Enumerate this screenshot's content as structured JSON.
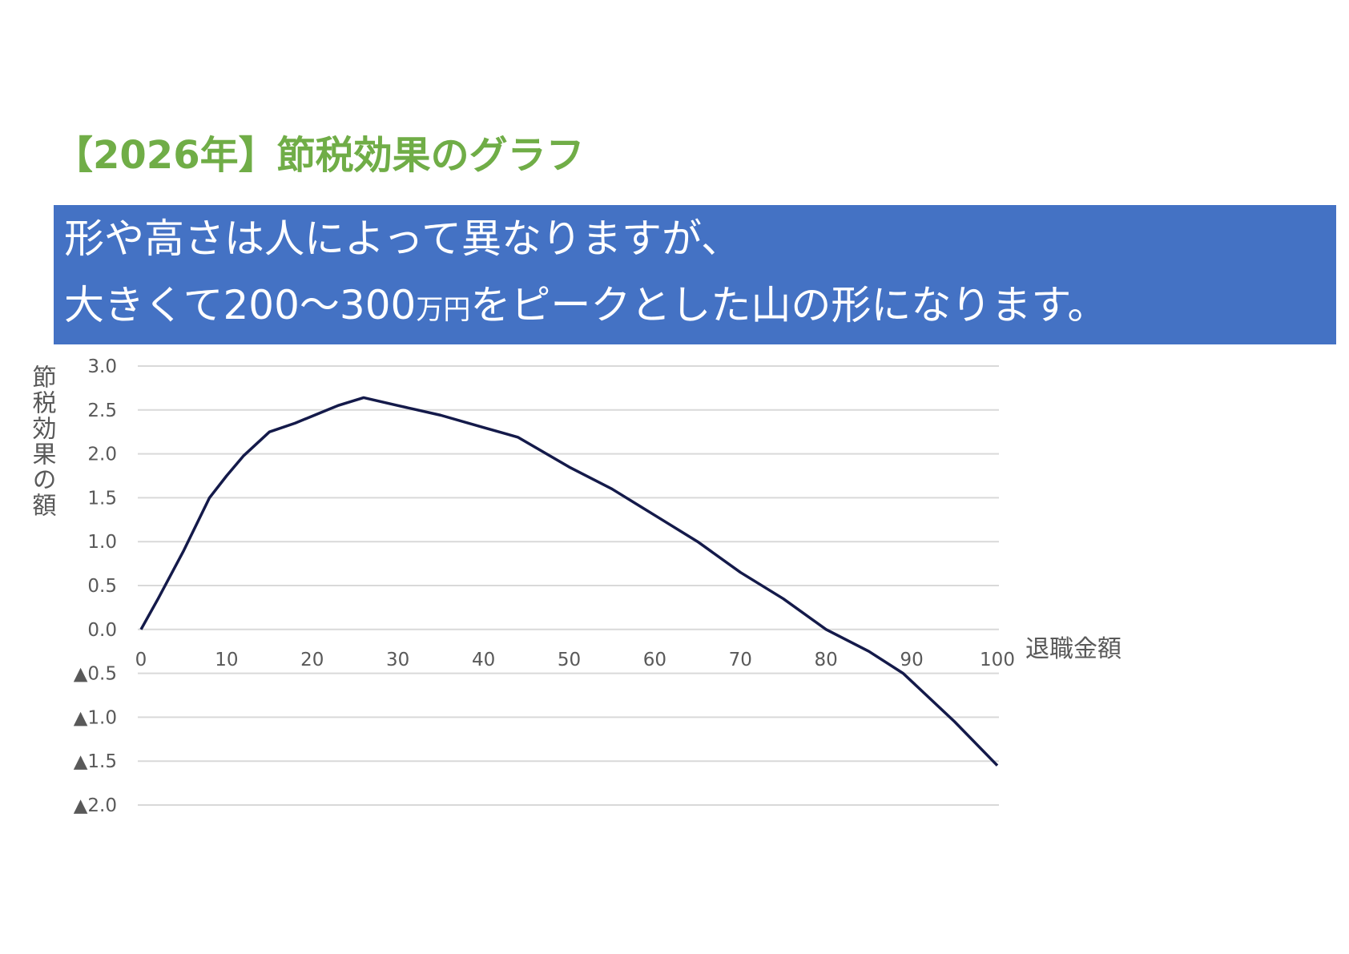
{
  "chart_data": {
    "type": "line",
    "title": "【2026年】節税効果のグラフ",
    "subtitle": {
      "line1": "形や高さは人によって異なりますが、",
      "line2": [
        "大きくて200～300",
        "万円",
        "をピークとした山の形になります。"
      ]
    },
    "x_label": "退職金額",
    "y_label": "節税効果の額",
    "x": [
      0,
      2,
      5,
      8,
      10,
      12,
      15,
      18,
      20,
      23,
      26,
      30,
      35,
      40,
      44,
      47,
      50,
      55,
      60,
      65,
      70,
      75,
      80,
      85,
      89,
      95,
      100
    ],
    "series": [
      {
        "color": "#141a4a",
        "values": [
          0,
          0.35,
          0.9,
          1.5,
          1.75,
          1.98,
          2.25,
          2.35,
          2.43,
          2.55,
          2.64,
          2.55,
          2.44,
          2.3,
          2.19,
          2.02,
          1.85,
          1.6,
          1.3,
          1.0,
          0.65,
          0.35,
          0.0,
          -0.25,
          -0.5,
          -1.05,
          -1.55
        ]
      }
    ],
    "xlim": [
      0,
      100
    ],
    "xticks": [
      0,
      10,
      20,
      30,
      40,
      50,
      60,
      70,
      80,
      90,
      100
    ],
    "ylim": [
      -2,
      3
    ],
    "yticks": [
      {
        "value": 3,
        "label": "3.0"
      },
      {
        "value": 2.5,
        "label": "2.5"
      },
      {
        "value": 2,
        "label": "2.0"
      },
      {
        "value": 1.5,
        "label": "1.5"
      },
      {
        "value": 1,
        "label": "1.0"
      },
      {
        "value": 0.5,
        "label": "0.5"
      },
      {
        "value": 0,
        "label": "0.0"
      },
      {
        "value": -0.5,
        "label": "▲0.5"
      },
      {
        "value": -1,
        "label": "▲1.0"
      },
      {
        "value": -1.5,
        "label": "▲1.5"
      },
      {
        "value": -2,
        "label": "▲2.0"
      }
    ],
    "grid": true
  }
}
